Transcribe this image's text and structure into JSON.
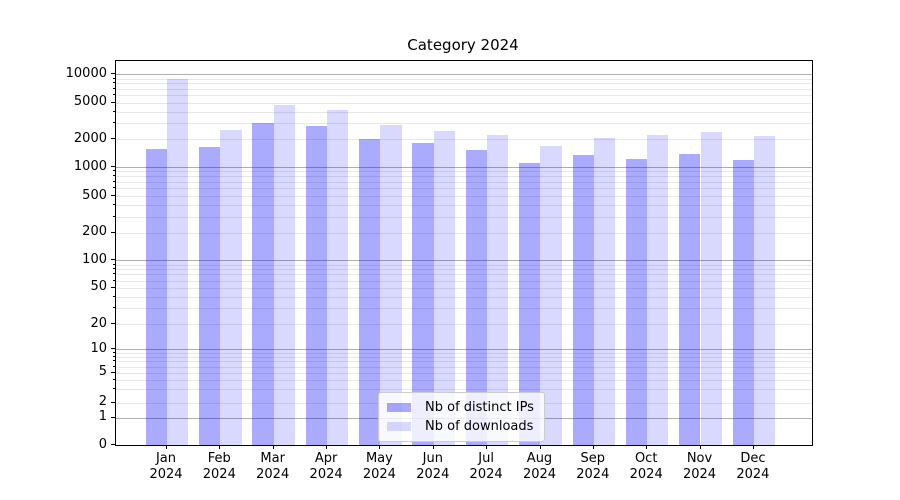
{
  "chart_data": {
    "type": "bar",
    "title": "Category 2024",
    "categories": [
      "Jan",
      "Feb",
      "Mar",
      "Apr",
      "May",
      "Jun",
      "Jul",
      "Aug",
      "Sep",
      "Oct",
      "Nov",
      "Dec"
    ],
    "category_year": "2024",
    "series": [
      {
        "name": "Nb of distinct IPs",
        "color": "rgba(0,0,255,0.335)",
        "values": [
          1560,
          1650,
          3000,
          2790,
          2000,
          1830,
          1520,
          1110,
          1340,
          1230,
          1370,
          1190
        ]
      },
      {
        "name": "Nb of downloads",
        "color": "rgba(0,0,255,0.15)",
        "values": [
          8870,
          2500,
          4730,
          4140,
          2830,
          2490,
          2250,
          1710,
          2070,
          2210,
          2380,
          2160
        ]
      }
    ],
    "xlabel": "",
    "ylabel": "",
    "yscale": "symlog",
    "y_ticks": [
      0,
      1,
      2,
      5,
      10,
      20,
      50,
      100,
      200,
      500,
      1000,
      2000,
      5000,
      10000
    ],
    "ylim": [
      0,
      13900
    ],
    "grid": {
      "axis": "y",
      "major_color": "#b0b0b0",
      "minor_color": "#e8e8e8",
      "major_at": [
        1,
        10,
        100,
        1000,
        10000
      ]
    },
    "legend": {
      "position": "lower center",
      "frame_color": "#cccccc",
      "entries": [
        "Nb of distinct IPs",
        "Nb of downloads"
      ]
    },
    "colors": {
      "background": "#ffffff",
      "spine": "#000000",
      "text": "#000000"
    }
  }
}
